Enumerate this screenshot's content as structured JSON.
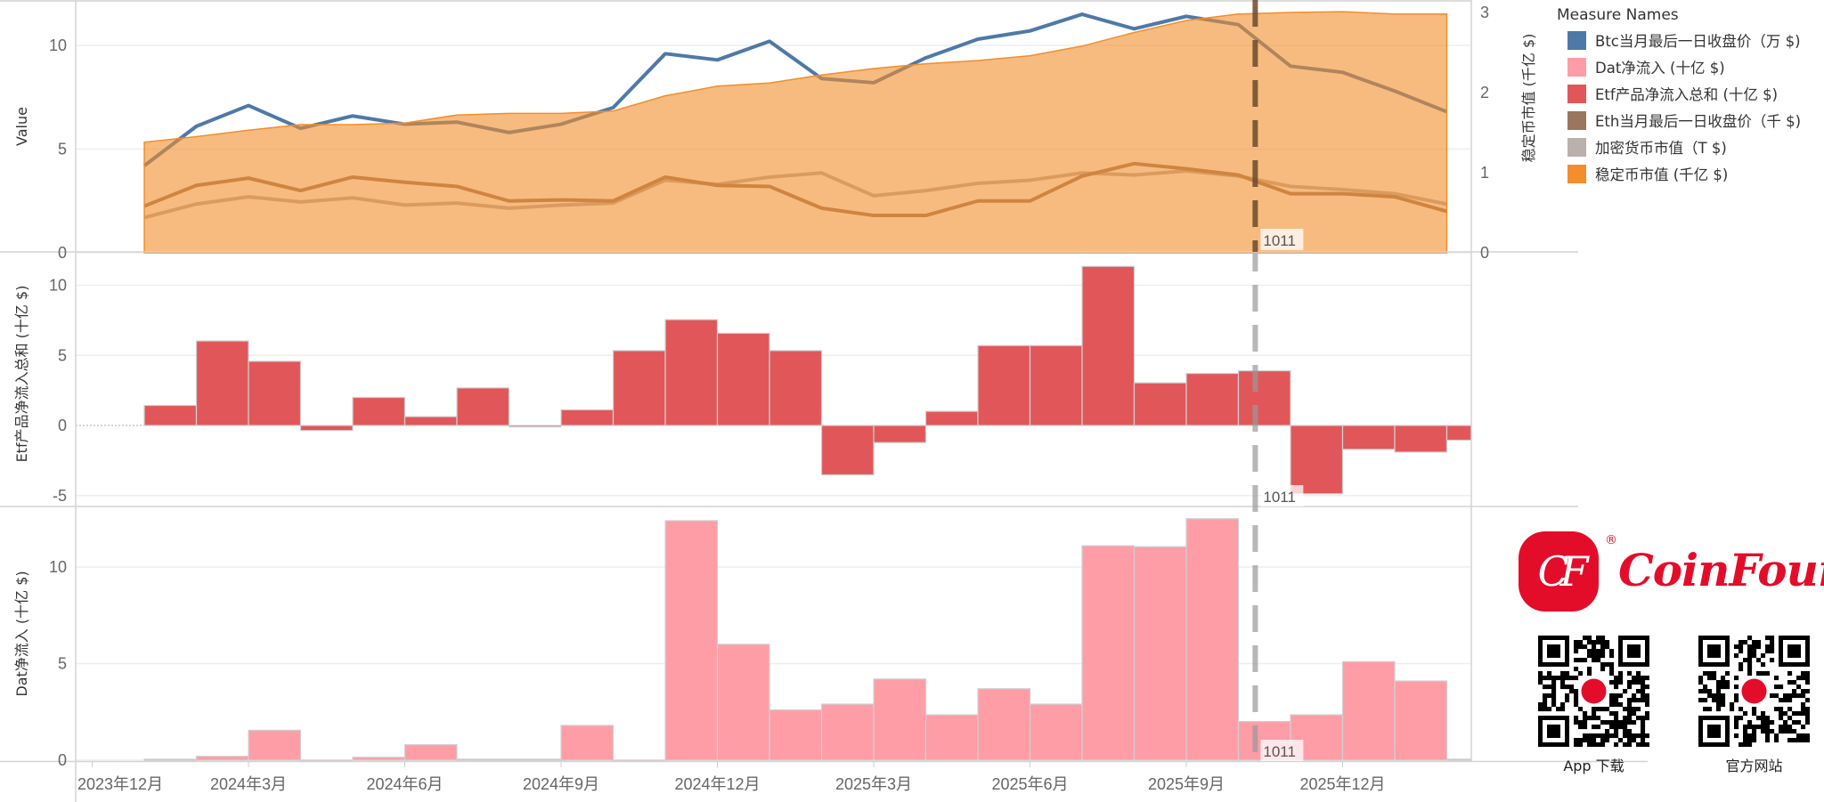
{
  "chart_data": [
    {
      "type": "line",
      "panel": "top",
      "ylabel": "Value",
      "ylabel_right": "稳定币市值 (千亿 $)",
      "ylim": [
        0,
        12.2
      ],
      "ylim_right": [
        0,
        3.15
      ],
      "yticks": [
        0,
        5,
        10
      ],
      "yticks_right": [
        0,
        1,
        2,
        3
      ],
      "grid": true,
      "x": [
        "2024-01",
        "2024-02",
        "2024-03",
        "2024-04",
        "2024-05",
        "2024-06",
        "2024-07",
        "2024-08",
        "2024-09",
        "2024-10",
        "2024-11",
        "2024-12",
        "2025-01",
        "2025-02",
        "2025-03",
        "2025-04",
        "2025-05",
        "2025-06",
        "2025-07",
        "2025-08",
        "2025-09",
        "2025-10",
        "2025-11",
        "2025-12",
        "2026-01",
        "2026-02"
      ],
      "series": [
        {
          "name": "Btc当月最后一日收盘价（万 $)",
          "color": "#4e79a7",
          "axis": "left",
          "type": "line",
          "values": [
            4.2,
            6.1,
            7.1,
            6.0,
            6.6,
            6.2,
            6.3,
            5.8,
            6.2,
            7.0,
            9.6,
            9.3,
            10.2,
            8.4,
            8.2,
            9.4,
            10.3,
            10.7,
            11.5,
            10.8,
            11.4,
            11.0,
            9.0,
            8.7,
            7.8,
            6.8
          ]
        },
        {
          "name": "Eth当月最后一日收盘价（千 $)",
          "color": "#9c755f",
          "axis": "left",
          "type": "line",
          "values": [
            2.25,
            3.25,
            3.6,
            3.0,
            3.65,
            3.4,
            3.2,
            2.5,
            2.55,
            2.5,
            3.65,
            3.25,
            3.2,
            2.15,
            1.8,
            1.8,
            2.5,
            2.5,
            3.7,
            4.3,
            4.05,
            3.75,
            2.85,
            2.85,
            2.7,
            2.0
          ]
        },
        {
          "name": "加密货币市值（T $)",
          "color": "#bab0ac",
          "axis": "left",
          "type": "line",
          "values": [
            1.7,
            2.35,
            2.7,
            2.45,
            2.65,
            2.3,
            2.4,
            2.15,
            2.3,
            2.4,
            3.5,
            3.3,
            3.65,
            3.85,
            2.75,
            3.0,
            3.35,
            3.5,
            3.85,
            3.75,
            3.95,
            3.7,
            3.2,
            3.05,
            2.85,
            2.35
          ]
        },
        {
          "name": "稳定币市值 (千亿 $)",
          "color": "#f28e2b",
          "axis": "right",
          "type": "area",
          "values": [
            1.38,
            1.45,
            1.53,
            1.6,
            1.6,
            1.62,
            1.72,
            1.74,
            1.74,
            1.77,
            1.96,
            2.08,
            2.12,
            2.22,
            2.3,
            2.36,
            2.4,
            2.46,
            2.58,
            2.75,
            2.9,
            2.98,
            3.0,
            3.01,
            2.98,
            2.98
          ]
        }
      ]
    },
    {
      "type": "bar",
      "panel": "middle",
      "ylabel": "Etf产品净流入总和 (十亿 $)",
      "ylim": [
        -5.7,
        12.3
      ],
      "yticks": [
        -5,
        0,
        5,
        10
      ],
      "grid": true,
      "color": "#e15759",
      "series": [
        {
          "name": "Etf产品净流入总和 (十亿 $)",
          "values": [
            1.43,
            6.03,
            4.58,
            -0.36,
            2.0,
            0.63,
            2.68,
            -0.1,
            1.12,
            5.34,
            7.55,
            6.58,
            5.34,
            -3.52,
            -1.22,
            1.01,
            5.7,
            5.7,
            11.35,
            3.04,
            3.71,
            3.9,
            -4.87,
            -1.7,
            -1.9,
            -1.05
          ]
        }
      ]
    },
    {
      "type": "bar",
      "panel": "bottom",
      "ylabel": "Dat净流入 (十亿 $)",
      "ylim": [
        0,
        13.1
      ],
      "yticks": [
        0,
        5,
        10
      ],
      "grid": true,
      "color": "#ff9da7",
      "series": [
        {
          "name": "Dat净流入 (十亿 $)",
          "values": [
            0.05,
            0.2,
            1.55,
            0,
            0.15,
            0.8,
            0.05,
            0.05,
            1.8,
            0,
            12.4,
            6.0,
            2.6,
            2.9,
            4.2,
            2.35,
            3.7,
            2.9,
            11.1,
            11.05,
            12.5,
            2.0,
            2.35,
            5.1,
            4.1,
            0.05
          ]
        }
      ]
    }
  ],
  "x_axis": {
    "ticks": [
      {
        "date": "2023-12",
        "label": "2023年12月"
      },
      {
        "date": "2024-03",
        "label": "2024年3月"
      },
      {
        "date": "2024-06",
        "label": "2024年6月"
      },
      {
        "date": "2024-09",
        "label": "2024年9月"
      },
      {
        "date": "2024-12",
        "label": "2024年12月"
      },
      {
        "date": "2025-03",
        "label": "2025年3月"
      },
      {
        "date": "2025-06",
        "label": "2025年6月"
      },
      {
        "date": "2025-09",
        "label": "2025年9月"
      },
      {
        "date": "2025-12",
        "label": "2025年12月"
      }
    ]
  },
  "reference_line": {
    "label": "1011",
    "date": "2025-10-11",
    "style": "dashed"
  },
  "legend": {
    "title": "Measure Names",
    "placement": "right",
    "items": [
      {
        "label": "Btc当月最后一日收盘价（万 $)",
        "color": "#4e79a7"
      },
      {
        "label": "Dat净流入 (十亿 $)",
        "color": "#ff9da7"
      },
      {
        "label": "Etf产品净流入总和 (十亿 $)",
        "color": "#e15759"
      },
      {
        "label": "Eth当月最后一日收盘价（千 $)",
        "color": "#9c755f"
      },
      {
        "label": "加密货币市值（T $)",
        "color": "#bab0ac"
      },
      {
        "label": "稳定币市值 (千亿 $)",
        "color": "#f28e2b"
      }
    ]
  },
  "branding": {
    "logo_mark": "CF",
    "logo_text": "CoinFound",
    "registered": "®",
    "brand_color": "#e30d2a",
    "qr_codes": [
      {
        "label": "App 下载",
        "icon": "qr-code-icon"
      },
      {
        "label": "官方网站",
        "icon": "qr-code-icon"
      }
    ]
  }
}
